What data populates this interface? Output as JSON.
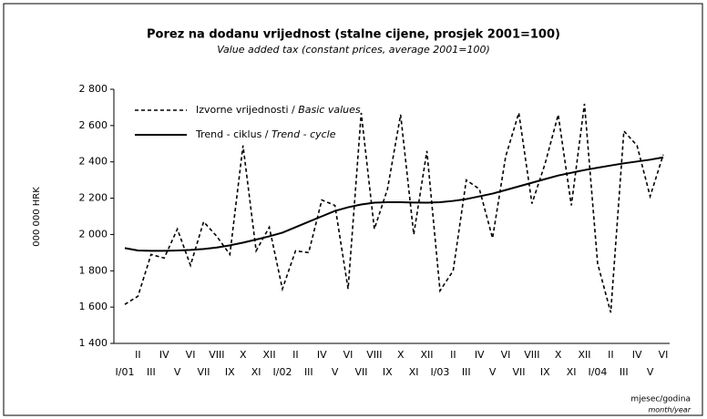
{
  "chart_data": {
    "type": "line",
    "title": "Porez na dodanu vrijednost (stalne cijene, prosjek 2001=100)",
    "subtitle": "Value added tax (constant prices, average 2001=100)",
    "y_label": "000 000 HRK",
    "x_label": "mjesec/godina",
    "x_label_en": "month/year",
    "categories": [
      "I/01",
      "II",
      "III",
      "IV",
      "V",
      "VI",
      "VII",
      "VIII",
      "IX",
      "X",
      "XI",
      "XII",
      "I/02",
      "II",
      "III",
      "IV",
      "V",
      "VI",
      "VII",
      "VIII",
      "IX",
      "X",
      "XI",
      "XII",
      "I/03",
      "II",
      "III",
      "IV",
      "V",
      "VI",
      "VII",
      "VIII",
      "IX",
      "X",
      "XI",
      "XII",
      "I/04",
      "II",
      "III",
      "IV",
      "V",
      "VI"
    ],
    "series": [
      {
        "name": "Izvorne vrijednosti / Basic values",
        "color": "#000000",
        "dash": true,
        "values": [
          1615,
          1660,
          1890,
          1870,
          2030,
          1830,
          2070,
          1990,
          1890,
          2490,
          1910,
          2040,
          1700,
          1910,
          1900,
          2190,
          2160,
          1700,
          2670,
          2030,
          2250,
          2660,
          2000,
          2460,
          1690,
          1800,
          2300,
          2250,
          1980,
          2430,
          2670,
          2170,
          2390,
          2660,
          2160,
          2720,
          1840,
          1570,
          2570,
          2490,
          2210,
          2440
        ]
      },
      {
        "name": "Trend - ciklus / Trend - cycle",
        "color": "#000000",
        "dash": false,
        "values": [
          1925,
          1912,
          1910,
          1910,
          1912,
          1915,
          1920,
          1928,
          1940,
          1955,
          1972,
          1990,
          2010,
          2040,
          2070,
          2100,
          2130,
          2150,
          2165,
          2175,
          2178,
          2178,
          2176,
          2175,
          2178,
          2185,
          2195,
          2210,
          2225,
          2245,
          2265,
          2285,
          2305,
          2325,
          2340,
          2355,
          2368,
          2380,
          2392,
          2402,
          2412,
          2425
        ]
      }
    ],
    "ylim": [
      1400,
      2800
    ],
    "yticks": [
      {
        "value": 1400,
        "label": "1 400"
      },
      {
        "value": 1600,
        "label": "1 600"
      },
      {
        "value": 1800,
        "label": "1 800"
      },
      {
        "value": 2000,
        "label": "2 000"
      },
      {
        "value": 2200,
        "label": "2 200"
      },
      {
        "value": 2400,
        "label": "2 400"
      },
      {
        "value": 2600,
        "label": "2 600"
      },
      {
        "value": 2800,
        "label": "2 800"
      }
    ],
    "grid": false
  }
}
